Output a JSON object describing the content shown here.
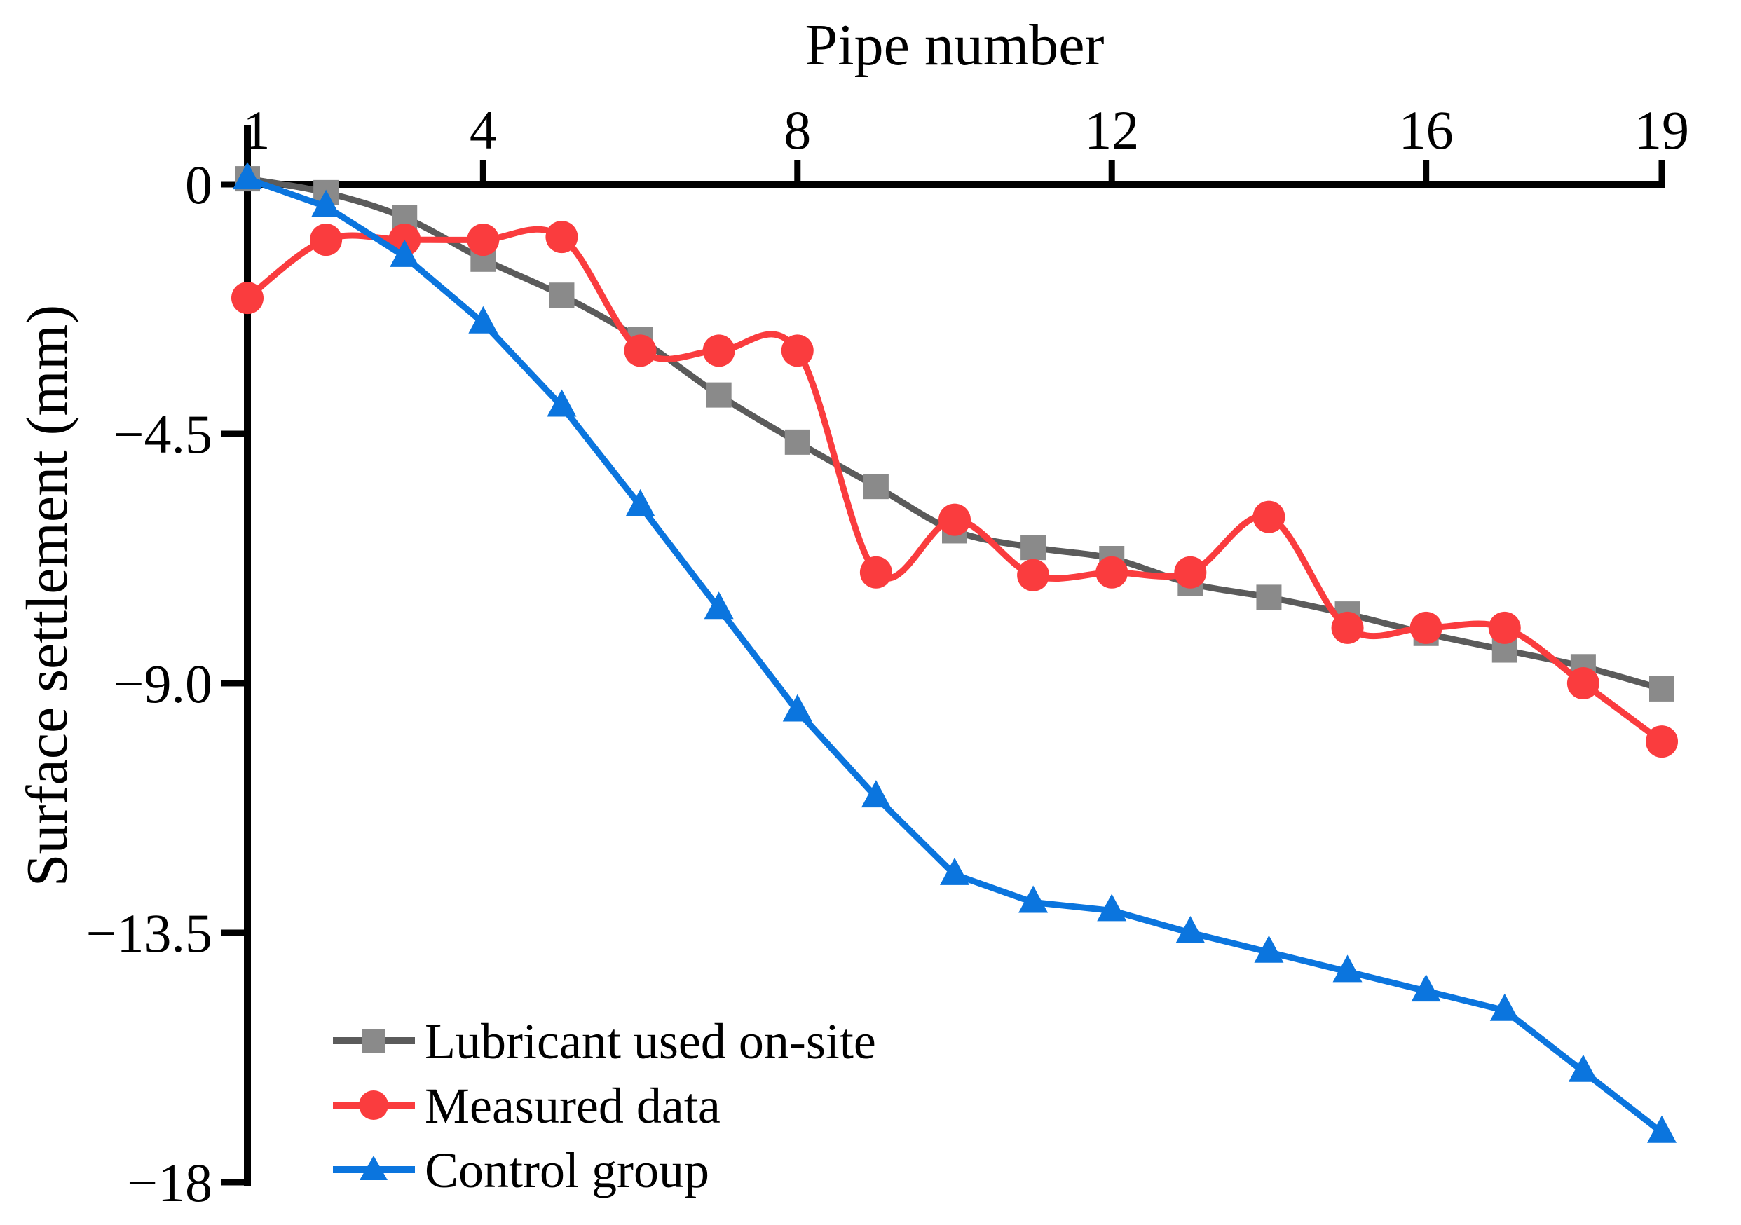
{
  "chart_data": {
    "type": "line",
    "xlabel": "Pipe number",
    "ylabel": "Surface settlement (mm)",
    "x": [
      1,
      2,
      3,
      4,
      5,
      6,
      7,
      8,
      9,
      10,
      11,
      12,
      13,
      14,
      15,
      16,
      17,
      18,
      19
    ],
    "xlim": [
      1,
      19
    ],
    "ylim": [
      -18,
      1.1
    ],
    "grid": false,
    "legend_position": "lower left",
    "x_ticks": [
      {
        "value": 1,
        "label": "1"
      },
      {
        "value": 4,
        "label": "4"
      },
      {
        "value": 8,
        "label": "8"
      },
      {
        "value": 12,
        "label": "12"
      },
      {
        "value": 16,
        "label": "16"
      },
      {
        "value": 19,
        "label": "19"
      }
    ],
    "y_ticks": [
      {
        "value": 0,
        "label": "0"
      },
      {
        "value": -4.5,
        "label": "−4.5"
      },
      {
        "value": -9,
        "label": "−9.0"
      },
      {
        "value": -13.5,
        "label": "−13.5"
      },
      {
        "value": -18,
        "label": "−18"
      }
    ],
    "series": [
      {
        "name": "Lubricant used on-site",
        "marker": "square",
        "smooth": true,
        "line_color": "#5B5B5B",
        "marker_color": "#8A8A8A",
        "values": [
          0.1,
          -0.15,
          -0.6,
          -1.35,
          -2.0,
          -2.8,
          -3.8,
          -4.65,
          -5.45,
          -6.25,
          -6.55,
          -6.75,
          -7.2,
          -7.45,
          -7.75,
          -8.1,
          -8.4,
          -8.7,
          -9.1
        ]
      },
      {
        "name": "Measured data",
        "marker": "circle",
        "smooth": true,
        "line_color": "#FA3C3E",
        "marker_color": "#FA3C3E",
        "values": [
          -2.05,
          -1.0,
          -1.0,
          -1.0,
          -0.95,
          -3.0,
          -3.0,
          -3.0,
          -7.0,
          -6.05,
          -7.05,
          -7.0,
          -7.0,
          -6.0,
          -8.0,
          -8.0,
          -8.0,
          -9.0,
          -10.05
        ]
      },
      {
        "name": "Control group",
        "marker": "triangle",
        "smooth": false,
        "line_color": "#0B75DE",
        "marker_color": "#0B75DE",
        "values": [
          0.1,
          -0.4,
          -1.3,
          -2.5,
          -4.0,
          -5.8,
          -7.65,
          -9.5,
          -11.05,
          -12.45,
          -12.95,
          -13.1,
          -13.5,
          -13.85,
          -14.2,
          -14.55,
          -14.9,
          -16.0,
          -17.1
        ]
      }
    ],
    "axis_color": "#000000",
    "background_color": "#FFFFFF"
  }
}
